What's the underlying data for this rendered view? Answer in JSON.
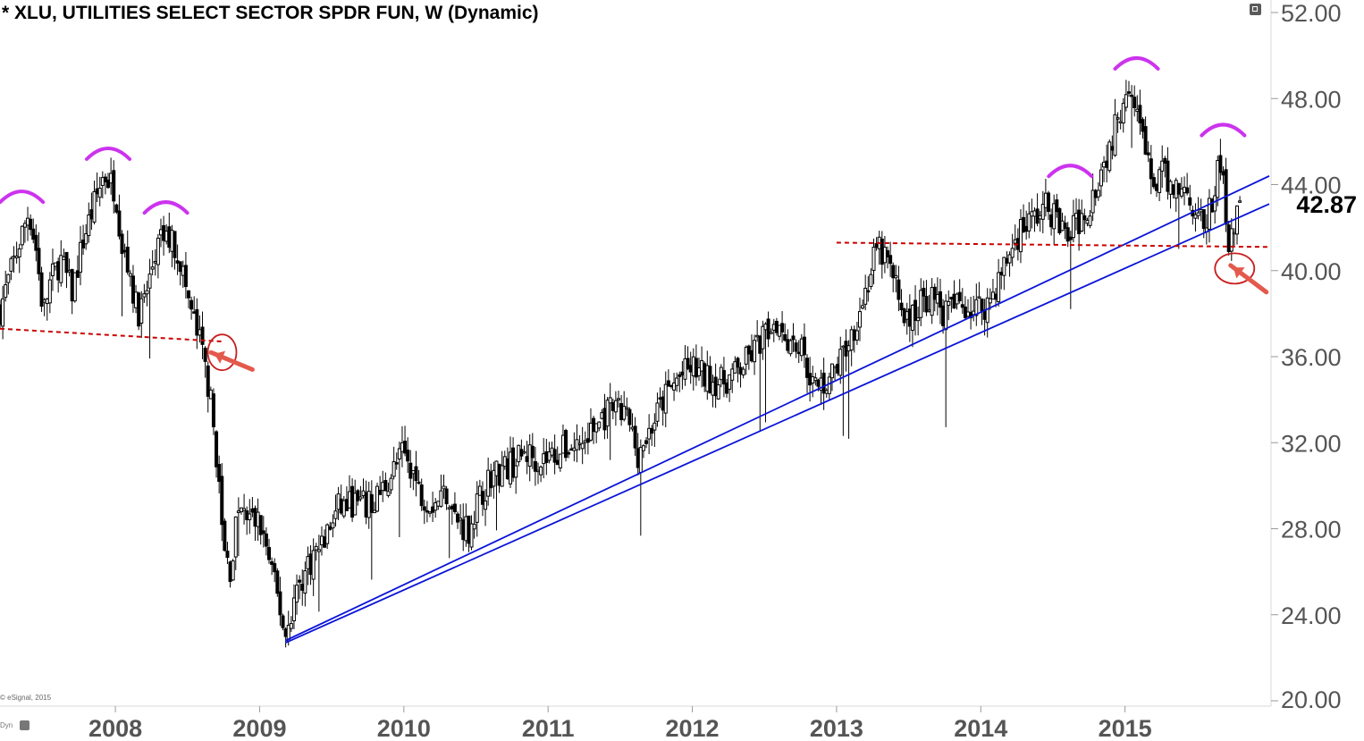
{
  "header": {
    "title": "* XLU, UTILITIES SELECT SECTOR SPDR FUN, W (Dynamic)",
    "last_price": "42.87"
  },
  "footer": {
    "copyright": "© eSignal, 2015",
    "mode": "Dyn"
  },
  "chart_data": {
    "type": "candlestick",
    "title": "* XLU, UTILITIES SELECT SECTOR SPDR FUN, W (Dynamic)",
    "xlabel": "",
    "ylabel": "",
    "ylim": [
      20,
      52
    ],
    "xlim": [
      2007.2,
      2016.0
    ],
    "y_ticks": [
      52,
      48,
      44,
      40,
      36,
      32,
      28,
      24,
      20
    ],
    "y_tick_labels": [
      "52.00",
      "48.00",
      "44.00",
      "40.00",
      "36.00",
      "32.00",
      "28.00",
      "24.00",
      "20.00"
    ],
    "x_ticks": [
      2008,
      2009,
      2010,
      2011,
      2012,
      2013,
      2014,
      2015
    ],
    "x_tick_labels": [
      "2008",
      "2009",
      "2010",
      "2011",
      "2012",
      "2013",
      "2014",
      "2015"
    ],
    "last_value": 42.87,
    "grid": false,
    "colors": {
      "candle": "#000000",
      "trendline": "#0a14d8",
      "support": "#cc0000",
      "markers": "#cc33ee",
      "circle": "#c81e1e",
      "arrow": "#e35a4d"
    },
    "close_path": [
      [
        2007.2,
        38.2
      ],
      [
        2007.3,
        40.5
      ],
      [
        2007.4,
        42.8
      ],
      [
        2007.45,
        41.0
      ],
      [
        2007.5,
        38.0
      ],
      [
        2007.55,
        39.5
      ],
      [
        2007.62,
        40.5
      ],
      [
        2007.7,
        39.0
      ],
      [
        2007.78,
        41.5
      ],
      [
        2007.85,
        43.0
      ],
      [
        2007.92,
        44.5
      ],
      [
        2008.0,
        43.8
      ],
      [
        2008.05,
        41.0
      ],
      [
        2008.1,
        40.0
      ],
      [
        2008.15,
        38.0
      ],
      [
        2008.2,
        38.5
      ],
      [
        2008.25,
        40.0
      ],
      [
        2008.3,
        41.2
      ],
      [
        2008.35,
        41.6
      ],
      [
        2008.4,
        41.3
      ],
      [
        2008.45,
        40.5
      ],
      [
        2008.5,
        38.8
      ],
      [
        2008.55,
        37.5
      ],
      [
        2008.6,
        36.3
      ],
      [
        2008.65,
        34.5
      ],
      [
        2008.7,
        31.5
      ],
      [
        2008.75,
        27.0
      ],
      [
        2008.8,
        26.0
      ],
      [
        2008.85,
        29.0
      ],
      [
        2008.9,
        28.5
      ],
      [
        2009.0,
        28.3
      ],
      [
        2009.05,
        27.0
      ],
      [
        2009.1,
        25.5
      ],
      [
        2009.15,
        24.0
      ],
      [
        2009.18,
        23.0
      ],
      [
        2009.25,
        25.0
      ],
      [
        2009.35,
        26.5
      ],
      [
        2009.45,
        27.5
      ],
      [
        2009.55,
        29.0
      ],
      [
        2009.65,
        29.2
      ],
      [
        2009.75,
        29.0
      ],
      [
        2009.85,
        29.8
      ],
      [
        2009.95,
        31.0
      ],
      [
        2010.0,
        31.5
      ],
      [
        2010.05,
        31.0
      ],
      [
        2010.1,
        29.8
      ],
      [
        2010.2,
        29.2
      ],
      [
        2010.3,
        29.8
      ],
      [
        2010.35,
        28.5
      ],
      [
        2010.45,
        28.0
      ],
      [
        2010.5,
        29.0
      ],
      [
        2010.6,
        30.5
      ],
      [
        2010.75,
        31.0
      ],
      [
        2010.85,
        31.5
      ],
      [
        2010.95,
        31.2
      ],
      [
        2011.05,
        31.5
      ],
      [
        2011.15,
        31.8
      ],
      [
        2011.25,
        32.0
      ],
      [
        2011.35,
        33.0
      ],
      [
        2011.45,
        33.5
      ],
      [
        2011.55,
        33.2
      ],
      [
        2011.62,
        31.5
      ],
      [
        2011.7,
        32.5
      ],
      [
        2011.8,
        34.0
      ],
      [
        2011.9,
        35.0
      ],
      [
        2012.0,
        35.5
      ],
      [
        2012.1,
        35.0
      ],
      [
        2012.2,
        34.8
      ],
      [
        2012.3,
        35.2
      ],
      [
        2012.4,
        36.0
      ],
      [
        2012.5,
        37.0
      ],
      [
        2012.58,
        37.8
      ],
      [
        2012.65,
        37.0
      ],
      [
        2012.75,
        36.5
      ],
      [
        2012.8,
        35.5
      ],
      [
        2012.85,
        34.5
      ],
      [
        2012.92,
        34.8
      ],
      [
        2013.0,
        35.5
      ],
      [
        2013.1,
        37.0
      ],
      [
        2013.2,
        39.0
      ],
      [
        2013.28,
        41.0
      ],
      [
        2013.35,
        40.5
      ],
      [
        2013.42,
        39.0
      ],
      [
        2013.5,
        37.5
      ],
      [
        2013.58,
        38.5
      ],
      [
        2013.65,
        38.8
      ],
      [
        2013.75,
        38.0
      ],
      [
        2013.85,
        38.5
      ],
      [
        2013.95,
        38.2
      ],
      [
        2014.05,
        38.5
      ],
      [
        2014.12,
        39.5
      ],
      [
        2014.2,
        40.8
      ],
      [
        2014.28,
        42.0
      ],
      [
        2014.38,
        42.5
      ],
      [
        2014.45,
        43.0
      ],
      [
        2014.52,
        42.5
      ],
      [
        2014.6,
        41.5
      ],
      [
        2014.65,
        42.0
      ],
      [
        2014.75,
        43.0
      ],
      [
        2014.82,
        44.5
      ],
      [
        2014.88,
        45.5
      ],
      [
        2014.95,
        47.0
      ],
      [
        2015.0,
        48.5
      ],
      [
        2015.05,
        48.8
      ],
      [
        2015.1,
        47.0
      ],
      [
        2015.15,
        45.0
      ],
      [
        2015.2,
        44.0
      ],
      [
        2015.25,
        44.5
      ],
      [
        2015.32,
        44.0
      ],
      [
        2015.4,
        43.8
      ],
      [
        2015.48,
        43.0
      ],
      [
        2015.55,
        42.0
      ],
      [
        2015.6,
        43.0
      ],
      [
        2015.65,
        45.0
      ],
      [
        2015.68,
        44.0
      ],
      [
        2015.72,
        41.5
      ],
      [
        2015.76,
        42.3
      ],
      [
        2015.8,
        42.87
      ]
    ],
    "series": [
      {
        "name": "",
        "kind": "trendline",
        "points": [
          [
            2009.18,
            22.8
          ],
          [
            2016.0,
            44.4
          ]
        ]
      },
      {
        "name": "",
        "kind": "trendline",
        "points": [
          [
            2009.18,
            22.7
          ],
          [
            2016.0,
            43.1
          ]
        ]
      },
      {
        "name": "",
        "kind": "support",
        "points": [
          [
            2007.2,
            37.3
          ],
          [
            2008.75,
            36.7
          ]
        ]
      },
      {
        "name": "",
        "kind": "support",
        "points": [
          [
            2013.0,
            41.3
          ],
          [
            2016.0,
            41.1
          ]
        ]
      }
    ],
    "annotations": [
      {
        "type": "head-shoulders-arc",
        "x": 2007.35,
        "y": 43.6
      },
      {
        "type": "head-shoulders-arc",
        "x": 2007.95,
        "y": 45.6
      },
      {
        "type": "head-shoulders-arc",
        "x": 2008.35,
        "y": 43.1
      },
      {
        "type": "head-shoulders-arc",
        "x": 2014.62,
        "y": 44.8
      },
      {
        "type": "head-shoulders-arc",
        "x": 2015.08,
        "y": 49.8
      },
      {
        "type": "head-shoulders-arc",
        "x": 2015.68,
        "y": 46.7
      },
      {
        "type": "breakdown-circle",
        "x": 2008.74,
        "y": 36.2
      },
      {
        "type": "breakdown-circle",
        "x": 2015.76,
        "y": 40.1
      },
      {
        "type": "arrow",
        "x": 2008.95,
        "y": 35.4
      },
      {
        "type": "arrow",
        "x": 2015.98,
        "y": 39.0
      }
    ]
  }
}
